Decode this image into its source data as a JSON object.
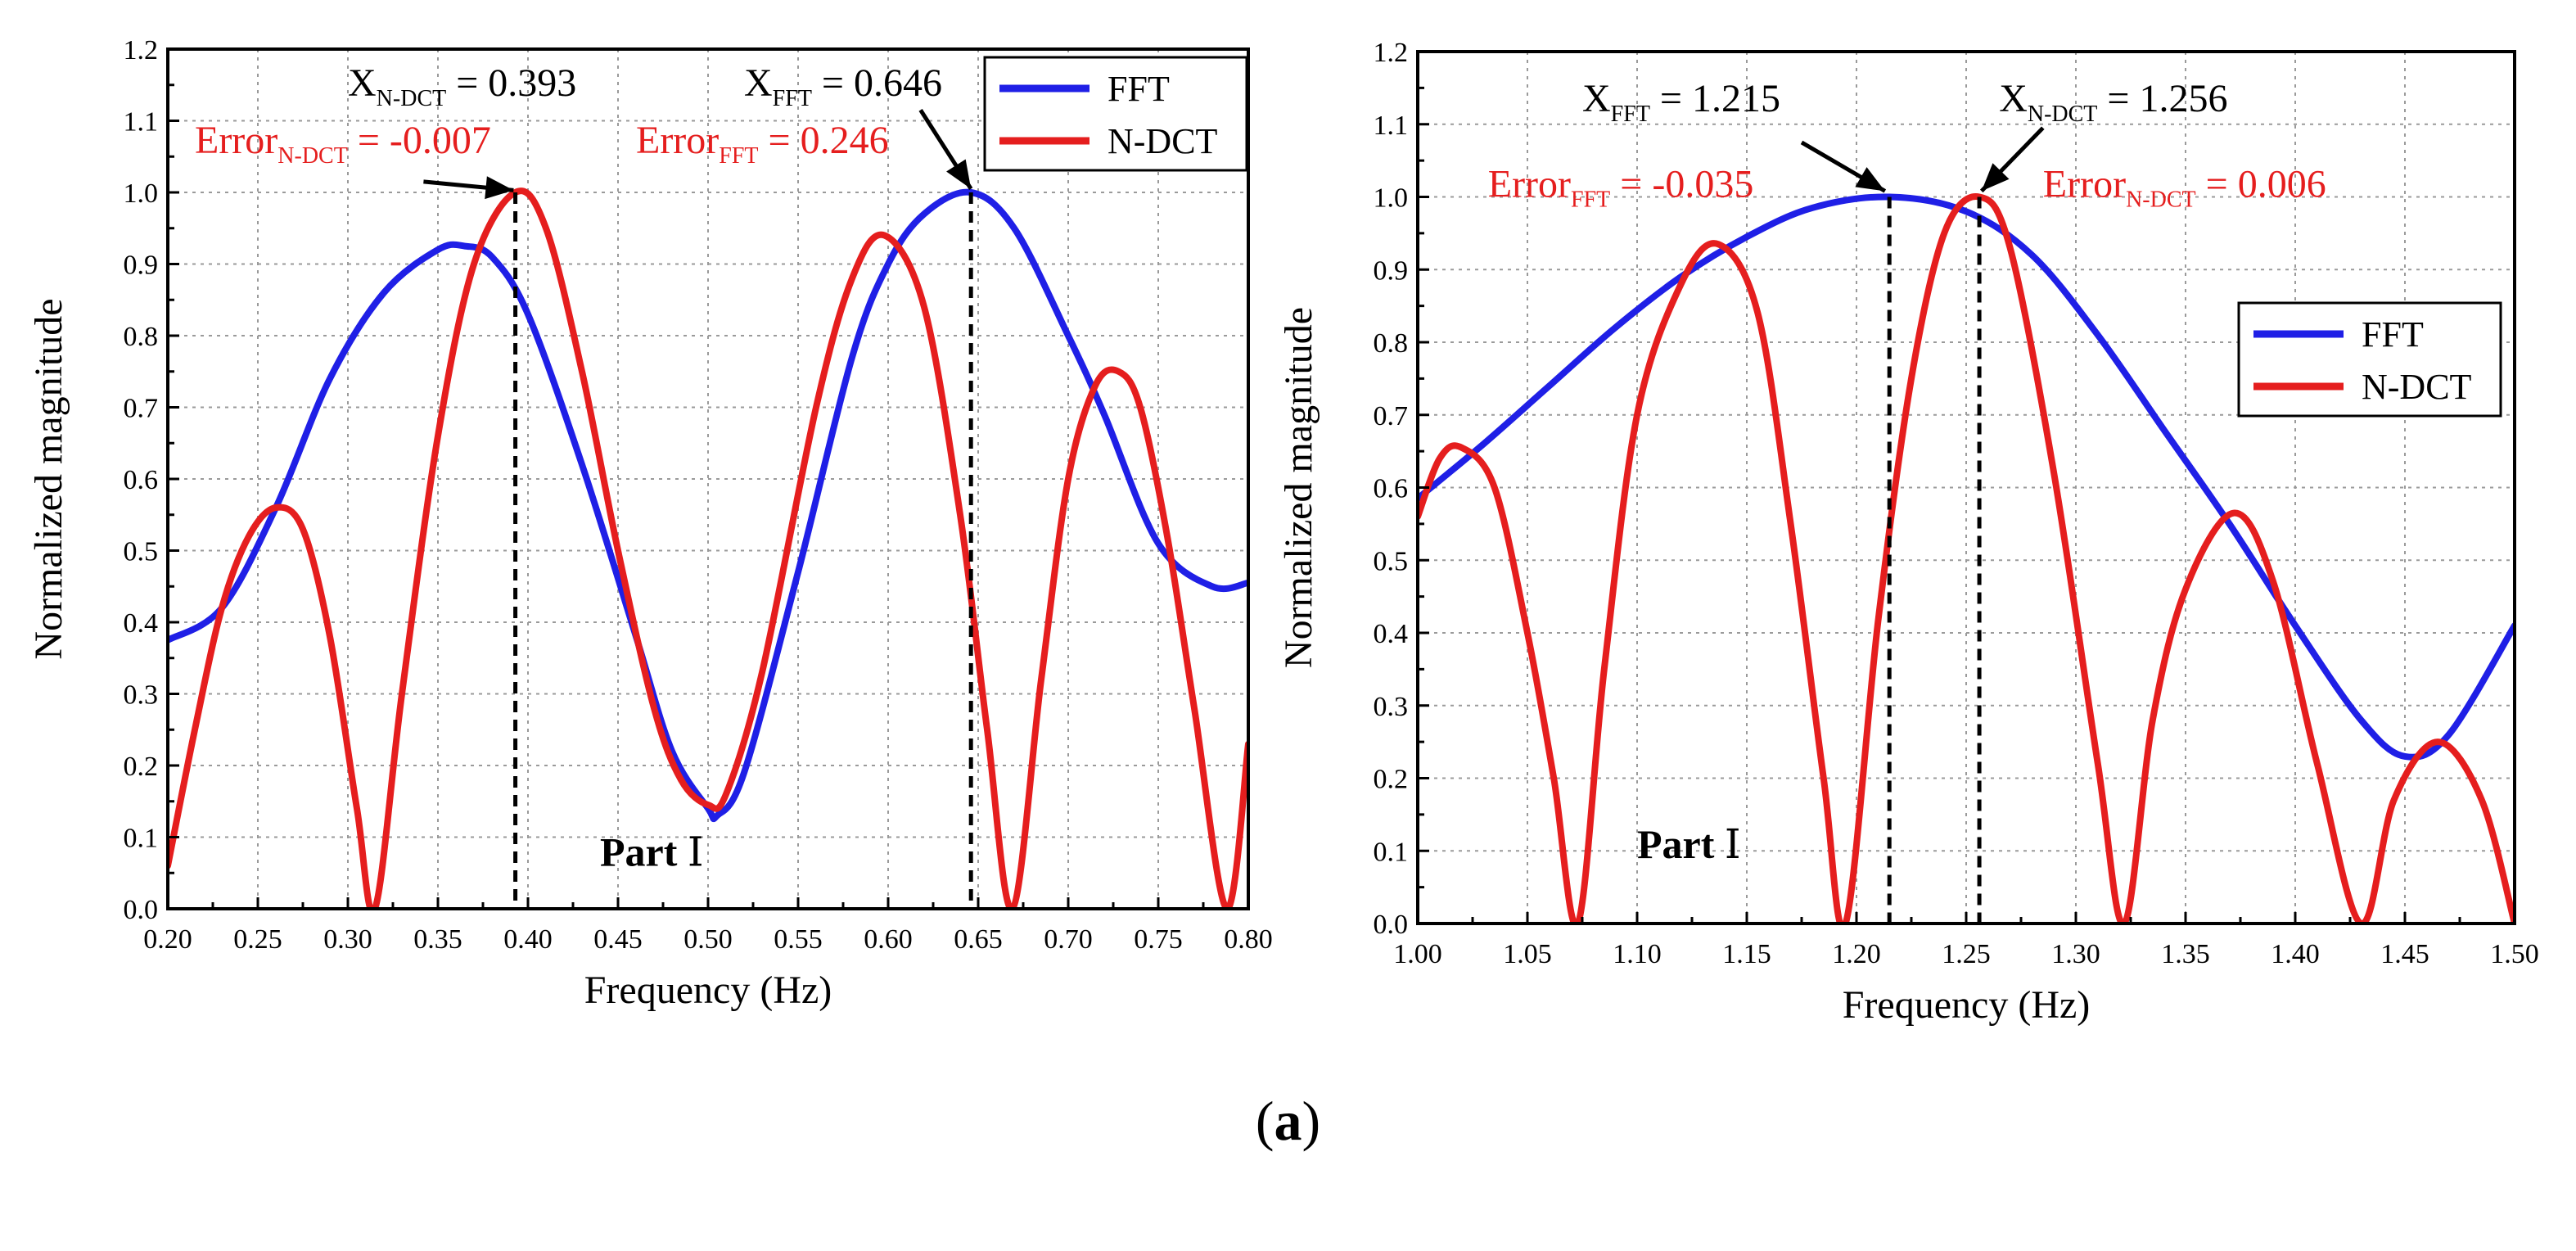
{
  "figure_label": "a",
  "colors": {
    "fft": "#1f1fe6",
    "ndct": "#e51e1e",
    "annot": "#e51e1e",
    "axis": "#000000",
    "grid": "#9a9a9a"
  },
  "chart_data": [
    {
      "type": "line",
      "title": "",
      "xlabel": "Frequency (Hz)",
      "ylabel": "Normalized magnitude",
      "xlim": [
        0.2,
        0.8
      ],
      "ylim": [
        0.0,
        1.2
      ],
      "xticks": [
        "0.20",
        "0.25",
        "0.30",
        "0.35",
        "0.40",
        "0.45",
        "0.50",
        "0.55",
        "0.60",
        "0.65",
        "0.70",
        "0.75",
        "0.80"
      ],
      "yticks": [
        "0.0",
        "0.1",
        "0.2",
        "0.3",
        "0.4",
        "0.5",
        "0.6",
        "0.7",
        "0.8",
        "0.9",
        "1.0",
        "1.1",
        "1.2"
      ],
      "grid": true,
      "legend_position": "top-right",
      "series": [
        {
          "name": "FFT",
          "color": "#1f1fe6",
          "x": [
            0.2,
            0.23,
            0.26,
            0.29,
            0.32,
            0.35,
            0.365,
            0.38,
            0.4,
            0.43,
            0.46,
            0.48,
            0.5,
            0.505,
            0.52,
            0.55,
            0.58,
            0.6,
            0.62,
            0.646,
            0.67,
            0.7,
            0.72,
            0.75,
            0.78,
            0.8
          ],
          "y": [
            0.375,
            0.42,
            0.56,
            0.74,
            0.86,
            0.92,
            0.925,
            0.91,
            0.83,
            0.62,
            0.38,
            0.22,
            0.14,
            0.13,
            0.19,
            0.47,
            0.77,
            0.9,
            0.97,
            1.0,
            0.95,
            0.8,
            0.69,
            0.51,
            0.45,
            0.455
          ]
        },
        {
          "name": "N-DCT",
          "color": "#e51e1e",
          "x": [
            0.2,
            0.215,
            0.23,
            0.245,
            0.26,
            0.275,
            0.29,
            0.305,
            0.315,
            0.33,
            0.35,
            0.37,
            0.393,
            0.41,
            0.43,
            0.45,
            0.47,
            0.485,
            0.5,
            0.51,
            0.53,
            0.56,
            0.58,
            0.598,
            0.62,
            0.64,
            0.655,
            0.669,
            0.685,
            0.7,
            0.715,
            0.728,
            0.74,
            0.755,
            0.77,
            0.788,
            0.8
          ],
          "y": [
            0.06,
            0.25,
            0.42,
            0.52,
            0.56,
            0.53,
            0.38,
            0.14,
            0.0,
            0.3,
            0.66,
            0.9,
            1.0,
            0.95,
            0.75,
            0.5,
            0.28,
            0.18,
            0.145,
            0.16,
            0.33,
            0.7,
            0.88,
            0.94,
            0.84,
            0.55,
            0.25,
            0.0,
            0.32,
            0.6,
            0.73,
            0.75,
            0.7,
            0.52,
            0.28,
            0.0,
            0.23
          ]
        }
      ],
      "vlines": [
        0.393,
        0.646
      ],
      "annotations": [
        {
          "x": 0.3,
          "y": 1.135,
          "main": "X",
          "sub": "N-DCT",
          "rest": " = 0.393",
          "red": false
        },
        {
          "x": 0.215,
          "y": 1.055,
          "main": "Error",
          "sub": "N-DCT",
          "rest": " = -0.007",
          "red": true
        },
        {
          "x": 0.52,
          "y": 1.135,
          "main": "X",
          "sub": "FFT",
          "rest": " = 0.646",
          "red": false
        },
        {
          "x": 0.46,
          "y": 1.055,
          "main": "Error",
          "sub": "FFT",
          "rest": " = 0.246",
          "red": true
        }
      ],
      "arrows": [
        {
          "x1": 0.342,
          "y1": 1.015,
          "x2": 0.392,
          "y2": 1.003
        },
        {
          "x1": 0.618,
          "y1": 1.115,
          "x2": 0.646,
          "y2": 1.005
        }
      ],
      "part_label": {
        "x": 0.44,
        "y": 0.06,
        "text": "Part",
        "numeral": "Ⅰ"
      }
    },
    {
      "type": "line",
      "title": "",
      "xlabel": "Frequency (Hz)",
      "ylabel": "Normalized magnitude",
      "xlim": [
        1.0,
        1.5
      ],
      "ylim": [
        0.0,
        1.2
      ],
      "xticks": [
        "1.00",
        "1.05",
        "1.10",
        "1.15",
        "1.20",
        "1.25",
        "1.30",
        "1.35",
        "1.40",
        "1.45",
        "1.50"
      ],
      "yticks": [
        "0.0",
        "0.1",
        "0.2",
        "0.3",
        "0.4",
        "0.5",
        "0.6",
        "0.7",
        "0.8",
        "0.9",
        "1.0",
        "1.1",
        "1.2"
      ],
      "grid": true,
      "legend_position": "right",
      "series": [
        {
          "name": "FFT",
          "color": "#1f1fe6",
          "x": [
            1.0,
            1.03,
            1.06,
            1.09,
            1.12,
            1.15,
            1.18,
            1.215,
            1.25,
            1.28,
            1.31,
            1.34,
            1.37,
            1.4,
            1.43,
            1.45,
            1.47,
            1.5
          ],
          "y": [
            0.585,
            0.66,
            0.74,
            0.82,
            0.89,
            0.945,
            0.985,
            1.0,
            0.98,
            0.92,
            0.81,
            0.68,
            0.55,
            0.41,
            0.28,
            0.23,
            0.26,
            0.41
          ]
        },
        {
          "name": "N-DCT",
          "color": "#e51e1e",
          "x": [
            1.0,
            1.01,
            1.02,
            1.035,
            1.05,
            1.062,
            1.073,
            1.085,
            1.1,
            1.12,
            1.137,
            1.155,
            1.17,
            1.185,
            1.195,
            1.21,
            1.225,
            1.24,
            1.256,
            1.27,
            1.29,
            1.31,
            1.322,
            1.335,
            1.35,
            1.372,
            1.39,
            1.41,
            1.43,
            1.445,
            1.465,
            1.485,
            1.5
          ],
          "y": [
            0.56,
            0.64,
            0.655,
            0.6,
            0.4,
            0.2,
            0.0,
            0.35,
            0.7,
            0.88,
            0.935,
            0.84,
            0.55,
            0.2,
            0.0,
            0.42,
            0.75,
            0.95,
            1.0,
            0.93,
            0.62,
            0.22,
            0.0,
            0.28,
            0.46,
            0.565,
            0.47,
            0.22,
            0.0,
            0.17,
            0.25,
            0.17,
            0.0
          ]
        }
      ],
      "vlines": [
        1.215,
        1.256
      ],
      "annotations": [
        {
          "x": 1.075,
          "y": 1.118,
          "main": "X",
          "sub": "FFT",
          "rest": " = 1.215",
          "red": false
        },
        {
          "x": 1.032,
          "y": 1.0,
          "main": "Error",
          "sub": "FFT",
          "rest": " = -0.035",
          "red": true
        },
        {
          "x": 1.265,
          "y": 1.118,
          "main": "X",
          "sub": "N-DCT",
          "rest": " = 1.256",
          "red": false
        },
        {
          "x": 1.285,
          "y": 1.0,
          "main": "Error",
          "sub": "N-DCT",
          "rest": " = 0.006",
          "red": true
        }
      ],
      "arrows": [
        {
          "x1": 1.175,
          "y1": 1.075,
          "x2": 1.213,
          "y2": 1.008
        },
        {
          "x1": 1.285,
          "y1": 1.095,
          "x2": 1.257,
          "y2": 1.008
        }
      ],
      "part_label": {
        "x": 1.1,
        "y": 0.09,
        "text": "Part",
        "numeral": "Ⅰ"
      }
    }
  ]
}
